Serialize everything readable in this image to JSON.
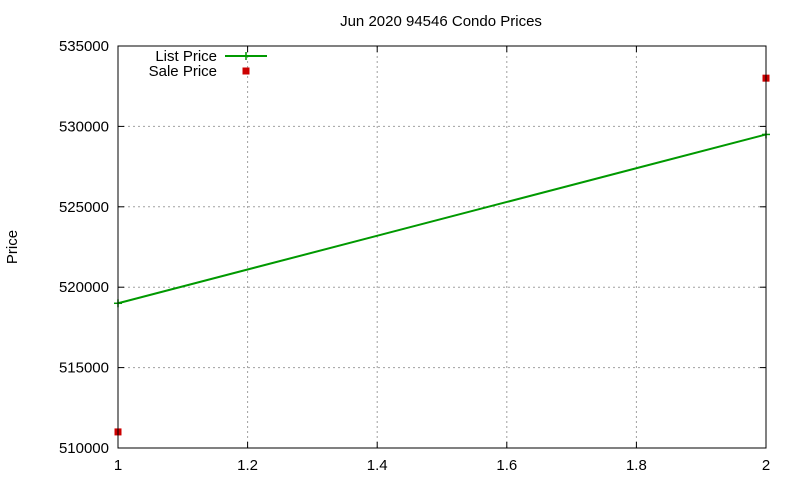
{
  "chart_data": {
    "type": "line",
    "title": "Jun 2020 94546 Condo Prices",
    "xlabel": "",
    "ylabel": "Price",
    "xlim": [
      1,
      2
    ],
    "ylim": [
      510000,
      535000
    ],
    "x_ticks": [
      "1",
      "1.2",
      "1.4",
      "1.6",
      "1.8",
      "2"
    ],
    "y_ticks": [
      "535000",
      "530000",
      "525000",
      "520000",
      "515000",
      "510000"
    ],
    "grid": true,
    "legend_position": "top-left",
    "series": [
      {
        "name": "List Price",
        "kind": "line",
        "color": "#009900",
        "points": [
          {
            "x": 1,
            "y": 519000
          },
          {
            "x": 2,
            "y": 529500
          }
        ]
      },
      {
        "name": "Sale Price",
        "kind": "points",
        "color": "#cc0000",
        "points": [
          {
            "x": 1,
            "y": 511000
          },
          {
            "x": 2,
            "y": 533000
          }
        ]
      }
    ]
  }
}
